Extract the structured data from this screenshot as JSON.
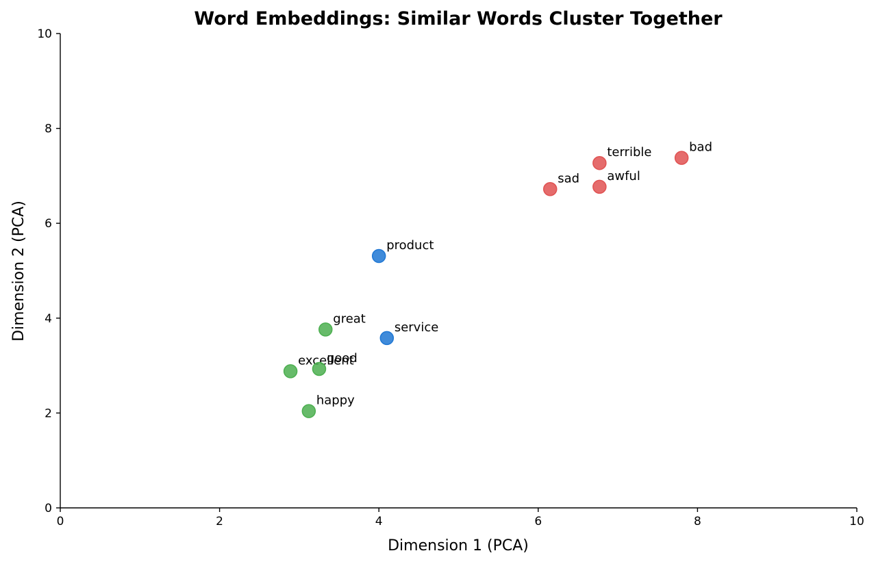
{
  "chart_data": {
    "type": "scatter",
    "title": "Word Embeddings: Similar Words Cluster Together",
    "xlabel": "Dimension 1 (PCA)",
    "ylabel": "Dimension 2 (PCA)",
    "xlim": [
      0,
      10
    ],
    "ylim": [
      0,
      10
    ],
    "xticks": [
      "0",
      "2",
      "4",
      "6",
      "8",
      "10"
    ],
    "yticks": [
      "0",
      "2",
      "4",
      "6",
      "8",
      "10"
    ],
    "grid": false,
    "colors": {
      "positive": "#4caf50",
      "neutral": "#1f77d4",
      "negative": "#e05252"
    },
    "points": [
      {
        "label": "great",
        "x": 3.33,
        "y": 3.76,
        "group": "positive"
      },
      {
        "label": "excellent",
        "x": 2.89,
        "y": 2.88,
        "group": "positive"
      },
      {
        "label": "good",
        "x": 3.25,
        "y": 2.93,
        "group": "positive"
      },
      {
        "label": "happy",
        "x": 3.12,
        "y": 2.04,
        "group": "positive"
      },
      {
        "label": "product",
        "x": 4.0,
        "y": 5.31,
        "group": "neutral"
      },
      {
        "label": "service",
        "x": 4.1,
        "y": 3.58,
        "group": "neutral"
      },
      {
        "label": "terrible",
        "x": 6.77,
        "y": 7.27,
        "group": "negative"
      },
      {
        "label": "awful",
        "x": 6.77,
        "y": 6.77,
        "group": "negative"
      },
      {
        "label": "sad",
        "x": 6.15,
        "y": 6.72,
        "group": "negative"
      },
      {
        "label": "bad",
        "x": 7.8,
        "y": 7.38,
        "group": "negative"
      }
    ]
  }
}
